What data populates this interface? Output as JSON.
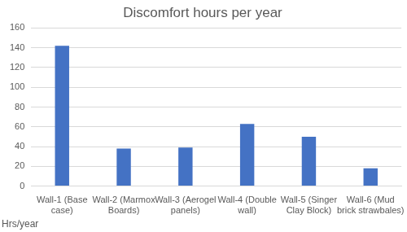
{
  "chart_data": {
    "type": "bar",
    "title": "Discomfort hours per year",
    "ylabel": "Hrs/year",
    "categories": [
      "Wall-1 (Base case)",
      "Wall-2 (Marmox Boards)",
      "Wall-3 (Aerogel panels)",
      "Wall-4 (Double wall)",
      "Wall-5 (Singer Clay Block)",
      "Wall-6 (Mud brick strawbales)"
    ],
    "values": [
      142,
      38,
      39,
      63,
      50,
      18
    ],
    "color": "#4472c4",
    "ylim": [
      0,
      160
    ],
    "yticks": [
      0,
      20,
      40,
      60,
      80,
      100,
      120,
      140,
      160
    ],
    "grid": true
  }
}
